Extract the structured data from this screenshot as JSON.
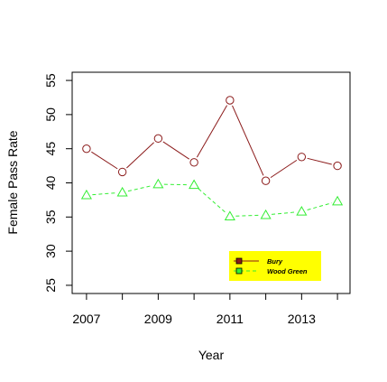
{
  "chart_data": {
    "type": "line",
    "title": "",
    "xlabel": "Year",
    "ylabel": "Female Pass Rate",
    "xlim": [
      2006.6,
      2014.35
    ],
    "ylim": [
      23.8,
      56.2
    ],
    "x_ticks": [
      2007,
      2008,
      2009,
      2010,
      2011,
      2012,
      2013,
      2014
    ],
    "x_tick_labels": [
      "2007",
      "",
      "2009",
      "",
      "2011",
      "",
      "2013",
      ""
    ],
    "y_ticks": [
      25,
      30,
      35,
      40,
      45,
      50,
      55
    ],
    "y_tick_labels": [
      "25",
      "30",
      "35",
      "40",
      "45",
      "50",
      "55"
    ],
    "legend_position": "bottom-right",
    "legend_background": "#ffff00",
    "x": [
      2007,
      2008,
      2009,
      2010,
      2011,
      2012,
      2013,
      2014
    ],
    "series": [
      {
        "name": "Bury",
        "color": "#8b1a1a",
        "line_style": "solid",
        "marker": "circle",
        "values": [
          45.0,
          41.6,
          46.5,
          43.0,
          52.1,
          40.3,
          43.8,
          42.5
        ]
      },
      {
        "name": "Wood Green",
        "color": "#33ee33",
        "line_style": "dashed",
        "marker": "triangle",
        "values": [
          38.2,
          38.6,
          39.8,
          39.7,
          35.1,
          35.3,
          35.8,
          37.3
        ]
      }
    ]
  }
}
